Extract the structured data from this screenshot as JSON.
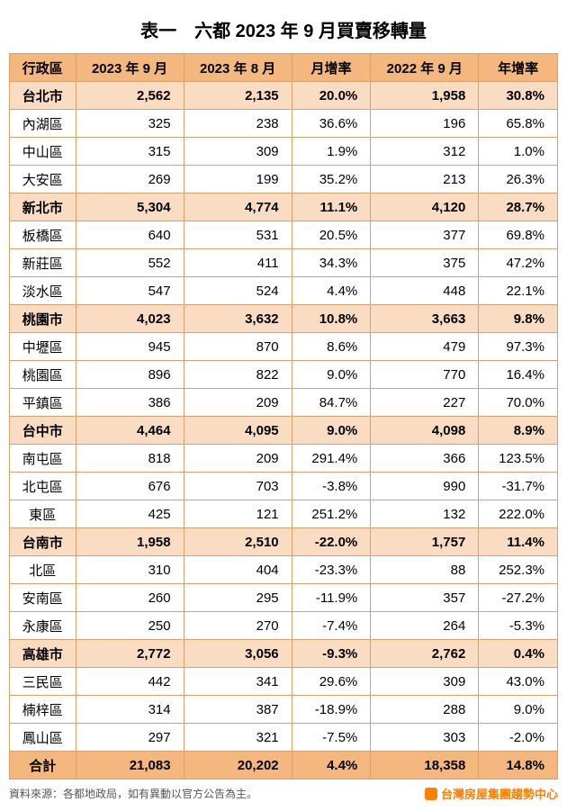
{
  "title": "表一　六都 2023 年 9 月買賣移轉量",
  "columns": [
    "行政區",
    "2023 年 9 月",
    "2023 年 8 月",
    "月增率",
    "2022 年 9 月",
    "年增率"
  ],
  "rows": [
    {
      "type": "city",
      "cells": [
        "台北市",
        "2,562",
        "2,135",
        "20.0%",
        "1,958",
        "30.8%"
      ]
    },
    {
      "type": "district",
      "cells": [
        "內湖區",
        "325",
        "238",
        "36.6%",
        "196",
        "65.8%"
      ]
    },
    {
      "type": "district",
      "cells": [
        "中山區",
        "315",
        "309",
        "1.9%",
        "312",
        "1.0%"
      ]
    },
    {
      "type": "district",
      "cells": [
        "大安區",
        "269",
        "199",
        "35.2%",
        "213",
        "26.3%"
      ]
    },
    {
      "type": "city",
      "cells": [
        "新北市",
        "5,304",
        "4,774",
        "11.1%",
        "4,120",
        "28.7%"
      ]
    },
    {
      "type": "district",
      "cells": [
        "板橋區",
        "640",
        "531",
        "20.5%",
        "377",
        "69.8%"
      ]
    },
    {
      "type": "district",
      "cells": [
        "新莊區",
        "552",
        "411",
        "34.3%",
        "375",
        "47.2%"
      ]
    },
    {
      "type": "district",
      "cells": [
        "淡水區",
        "547",
        "524",
        "4.4%",
        "448",
        "22.1%"
      ]
    },
    {
      "type": "city",
      "cells": [
        "桃園市",
        "4,023",
        "3,632",
        "10.8%",
        "3,663",
        "9.8%"
      ]
    },
    {
      "type": "district",
      "cells": [
        "中壢區",
        "945",
        "870",
        "8.6%",
        "479",
        "97.3%"
      ]
    },
    {
      "type": "district",
      "cells": [
        "桃園區",
        "896",
        "822",
        "9.0%",
        "770",
        "16.4%"
      ]
    },
    {
      "type": "district",
      "cells": [
        "平鎮區",
        "386",
        "209",
        "84.7%",
        "227",
        "70.0%"
      ]
    },
    {
      "type": "city",
      "cells": [
        "台中市",
        "4,464",
        "4,095",
        "9.0%",
        "4,098",
        "8.9%"
      ]
    },
    {
      "type": "district",
      "cells": [
        "南屯區",
        "818",
        "209",
        "291.4%",
        "366",
        "123.5%"
      ]
    },
    {
      "type": "district",
      "cells": [
        "北屯區",
        "676",
        "703",
        "-3.8%",
        "990",
        "-31.7%"
      ]
    },
    {
      "type": "district",
      "cells": [
        "東區",
        "425",
        "121",
        "251.2%",
        "132",
        "222.0%"
      ]
    },
    {
      "type": "city",
      "cells": [
        "台南市",
        "1,958",
        "2,510",
        "-22.0%",
        "1,757",
        "11.4%"
      ]
    },
    {
      "type": "district",
      "cells": [
        "北區",
        "310",
        "404",
        "-23.3%",
        "88",
        "252.3%"
      ]
    },
    {
      "type": "district",
      "cells": [
        "安南區",
        "260",
        "295",
        "-11.9%",
        "357",
        "-27.2%"
      ]
    },
    {
      "type": "district",
      "cells": [
        "永康區",
        "250",
        "270",
        "-7.4%",
        "264",
        "-5.3%"
      ]
    },
    {
      "type": "city",
      "cells": [
        "高雄市",
        "2,772",
        "3,056",
        "-9.3%",
        "2,762",
        "0.4%"
      ]
    },
    {
      "type": "district",
      "cells": [
        "三民區",
        "442",
        "341",
        "29.6%",
        "309",
        "43.0%"
      ]
    },
    {
      "type": "district",
      "cells": [
        "楠梓區",
        "314",
        "387",
        "-18.9%",
        "288",
        "9.0%"
      ]
    },
    {
      "type": "district",
      "cells": [
        "鳳山區",
        "297",
        "321",
        "-7.5%",
        "303",
        "-2.0%"
      ]
    },
    {
      "type": "total",
      "cells": [
        "合計",
        "21,083",
        "20,202",
        "4.4%",
        "18,358",
        "14.8%"
      ]
    }
  ],
  "source_note": "資料來源：各都地政局，如有異動以官方公告為主。",
  "brand": "台灣房屋集團趨勢中心",
  "styling": {
    "header_bg": "#f4b77e",
    "city_bg": "#fadcc3",
    "total_bg": "#f4b77e",
    "border_color": "#d9a06c",
    "brand_color": "#ff7f00",
    "title_fontsize": 20,
    "cell_fontsize": 15,
    "footer_fontsize": 12
  }
}
